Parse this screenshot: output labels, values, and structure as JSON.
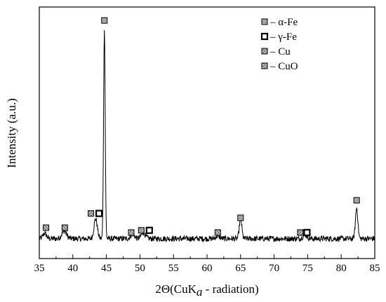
{
  "chart_data": {
    "type": "line",
    "title": "",
    "xlabel": "2Θ(CuK",
    "xlabel_sub": "a",
    "xlabel_tail": " - radiation)",
    "ylabel": "Intensity (a.u.)",
    "xlim": [
      35,
      85
    ],
    "ylim": [
      0,
      100
    ],
    "y_ticks_shown": false,
    "grid": false,
    "x_ticks": [
      35,
      40,
      45,
      50,
      55,
      60,
      65,
      70,
      75,
      80,
      85
    ],
    "x_tick_labels": [
      "35",
      "40",
      "45",
      "50",
      "55",
      "60",
      "65",
      "70",
      "75",
      "80",
      "85"
    ],
    "legend_position": "top-right",
    "legend": [
      {
        "marker": "alpha-fe",
        "label": "α-Fe"
      },
      {
        "marker": "gamma-fe",
        "label": "γ-Fe"
      },
      {
        "marker": "cu",
        "label": "Cu"
      },
      {
        "marker": "cuo",
        "label": "CuO"
      }
    ],
    "legend_dash": "– ",
    "series": [
      {
        "color": "#000000",
        "peaks": [
          {
            "x": 35.8,
            "height": 2.5,
            "width": 0.25
          },
          {
            "x": 38.7,
            "height": 3.5,
            "width": 0.35
          },
          {
            "x": 43.4,
            "height": 9.0,
            "width": 0.25
          },
          {
            "x": 44.7,
            "height": 96.0,
            "width": 0.12
          },
          {
            "x": 48.9,
            "height": 2.0,
            "width": 0.3
          },
          {
            "x": 50.5,
            "height": 2.8,
            "width": 0.3
          },
          {
            "x": 61.6,
            "height": 1.2,
            "width": 0.3
          },
          {
            "x": 65.0,
            "height": 9.5,
            "width": 0.18
          },
          {
            "x": 74.6,
            "height": 1.8,
            "width": 0.3
          },
          {
            "x": 82.3,
            "height": 14.0,
            "width": 0.18
          }
        ],
        "baseline": 3.0,
        "noise": 1.3
      }
    ],
    "markers": [
      {
        "phase": "cuo",
        "x": 36.0,
        "y": 8.0
      },
      {
        "phase": "cuo",
        "x": 38.8,
        "y": 8.0
      },
      {
        "phase": "cu",
        "x": 42.7,
        "y": 14.5
      },
      {
        "phase": "gamma-fe",
        "x": 43.9,
        "y": 14.5
      },
      {
        "phase": "alpha-fe",
        "x": 44.7,
        "y": 102.5
      },
      {
        "phase": "cuo",
        "x": 48.7,
        "y": 5.8
      },
      {
        "phase": "cu",
        "x": 50.2,
        "y": 6.8
      },
      {
        "phase": "gamma-fe",
        "x": 51.4,
        "y": 6.8
      },
      {
        "phase": "cuo",
        "x": 61.6,
        "y": 5.8
      },
      {
        "phase": "alpha-fe",
        "x": 65.0,
        "y": 12.5
      },
      {
        "phase": "cu",
        "x": 73.9,
        "y": 5.8
      },
      {
        "phase": "gamma-fe",
        "x": 74.9,
        "y": 5.8
      },
      {
        "phase": "alpha-fe",
        "x": 82.3,
        "y": 20.5
      }
    ],
    "colors": {
      "axis": "#000000",
      "line": "#000000",
      "marker_fill_alpha": "#a6a6a6",
      "marker_fill_hatch": "#8c8c8c"
    }
  }
}
